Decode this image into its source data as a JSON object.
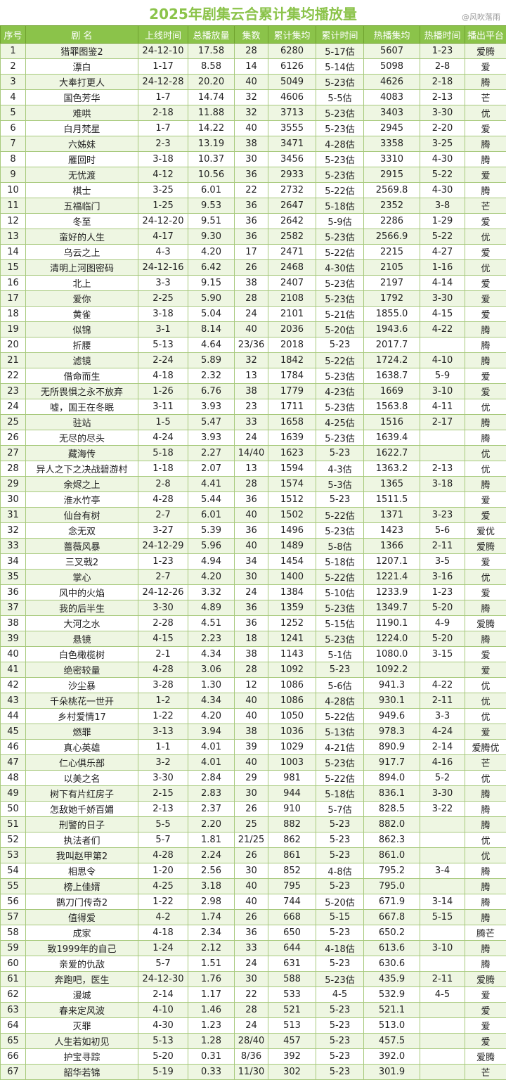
{
  "title": "2025年剧集云合累计集均播放量",
  "watermark": "@风吹落雨",
  "headers": [
    "序号",
    "剧  名",
    "上线时间",
    "总播放量",
    "集数",
    "累计集均",
    "累计时间",
    "热播集均",
    "热播时间",
    "播出平台"
  ],
  "rows": [
    [
      "1",
      "猎罪图鉴2",
      "24-12-10",
      "17.58",
      "28",
      "6280",
      "5-17估",
      "5607",
      "1-23",
      "爱腾"
    ],
    [
      "2",
      "漂白",
      "1-17",
      "8.58",
      "14",
      "6126",
      "5-14估",
      "5098",
      "2-8",
      "爱"
    ],
    [
      "3",
      "大奉打更人",
      "24-12-28",
      "20.20",
      "40",
      "5049",
      "5-23估",
      "4626",
      "2-18",
      "腾"
    ],
    [
      "4",
      "国色芳华",
      "1-7",
      "14.74",
      "32",
      "4606",
      "5-5估",
      "4083",
      "2-13",
      "芒"
    ],
    [
      "5",
      "难哄",
      "2-18",
      "11.88",
      "32",
      "3713",
      "5-23估",
      "3403",
      "3-30",
      "优"
    ],
    [
      "6",
      "白月梵星",
      "1-7",
      "14.22",
      "40",
      "3555",
      "5-23估",
      "2945",
      "2-20",
      "爱"
    ],
    [
      "7",
      "六姊妹",
      "2-3",
      "13.19",
      "38",
      "3471",
      "4-28估",
      "3358",
      "3-25",
      "腾"
    ],
    [
      "8",
      "雁回时",
      "3-18",
      "10.37",
      "30",
      "3456",
      "5-23估",
      "3310",
      "4-30",
      "腾"
    ],
    [
      "9",
      "无忧渡",
      "4-12",
      "10.56",
      "36",
      "2933",
      "5-23估",
      "2915",
      "5-22",
      "爱"
    ],
    [
      "10",
      "棋士",
      "3-25",
      "6.01",
      "22",
      "2732",
      "5-22估",
      "2569.8",
      "4-30",
      "腾"
    ],
    [
      "11",
      "五福临门",
      "1-25",
      "9.53",
      "36",
      "2647",
      "5-18估",
      "2352",
      "3-8",
      "芒"
    ],
    [
      "12",
      "冬至",
      "24-12-20",
      "9.51",
      "36",
      "2642",
      "5-9估",
      "2286",
      "1-29",
      "爱"
    ],
    [
      "13",
      "蛮好的人生",
      "4-17",
      "9.30",
      "36",
      "2582",
      "5-23估",
      "2566.9",
      "5-22",
      "优"
    ],
    [
      "14",
      "乌云之上",
      "4-3",
      "4.20",
      "17",
      "2471",
      "5-22估",
      "2215",
      "4-27",
      "爱"
    ],
    [
      "15",
      "清明上河图密码",
      "24-12-16",
      "6.42",
      "26",
      "2468",
      "4-30估",
      "2105",
      "1-16",
      "优"
    ],
    [
      "16",
      "北上",
      "3-3",
      "9.15",
      "38",
      "2407",
      "5-23估",
      "2197",
      "4-14",
      "爱"
    ],
    [
      "17",
      "爱你",
      "2-25",
      "5.90",
      "28",
      "2108",
      "5-23估",
      "1792",
      "3-30",
      "爱"
    ],
    [
      "18",
      "黄雀",
      "3-18",
      "5.04",
      "24",
      "2101",
      "5-21估",
      "1855.0",
      "4-15",
      "爱"
    ],
    [
      "19",
      "似锦",
      "3-1",
      "8.14",
      "40",
      "2036",
      "5-20估",
      "1943.6",
      "4-22",
      "腾"
    ],
    [
      "20",
      "折腰",
      "5-13",
      "4.64",
      "23/36",
      "2018",
      "5-23",
      "2017.7",
      "",
      "腾"
    ],
    [
      "21",
      "滤镜",
      "2-24",
      "5.89",
      "32",
      "1842",
      "5-22估",
      "1724.2",
      "4-10",
      "腾"
    ],
    [
      "22",
      "借命而生",
      "4-18",
      "2.32",
      "13",
      "1784",
      "5-23估",
      "1638.7",
      "5-9",
      "爱"
    ],
    [
      "23",
      "无所畏惧之永不放弃",
      "1-26",
      "6.76",
      "38",
      "1779",
      "4-23估",
      "1669",
      "3-10",
      "爱"
    ],
    [
      "24",
      "嘘，国王在冬眠",
      "3-11",
      "3.93",
      "23",
      "1711",
      "5-23估",
      "1563.8",
      "4-11",
      "优"
    ],
    [
      "25",
      "驻站",
      "1-5",
      "5.47",
      "33",
      "1658",
      "4-25估",
      "1516",
      "2-17",
      "腾"
    ],
    [
      "26",
      "无尽的尽头",
      "4-24",
      "3.93",
      "24",
      "1639",
      "5-23估",
      "1639.4",
      "",
      "腾"
    ],
    [
      "27",
      "藏海传",
      "5-18",
      "2.27",
      "14/40",
      "1623",
      "5-23",
      "1622.7",
      "",
      "优"
    ],
    [
      "28",
      "异人之下之决战碧游村",
      "1-18",
      "2.07",
      "13",
      "1594",
      "4-3估",
      "1363.2",
      "2-13",
      "优"
    ],
    [
      "29",
      "余烬之上",
      "2-8",
      "4.41",
      "28",
      "1574",
      "5-3估",
      "1365",
      "3-18",
      "腾"
    ],
    [
      "30",
      "淮水竹亭",
      "4-28",
      "5.44",
      "36",
      "1512",
      "5-23",
      "1511.5",
      "",
      "爱"
    ],
    [
      "31",
      "仙台有树",
      "2-7",
      "6.01",
      "40",
      "1502",
      "5-22估",
      "1371",
      "3-23",
      "爱"
    ],
    [
      "32",
      "念无双",
      "3-27",
      "5.39",
      "36",
      "1496",
      "5-23估",
      "1423",
      "5-6",
      "爱优"
    ],
    [
      "33",
      "蔷薇风暴",
      "24-12-29",
      "5.96",
      "40",
      "1489",
      "5-8估",
      "1366",
      "2-11",
      "爱腾"
    ],
    [
      "34",
      "三叉戟2",
      "1-23",
      "4.94",
      "34",
      "1454",
      "5-18估",
      "1207.1",
      "3-5",
      "爱"
    ],
    [
      "35",
      "掌心",
      "2-7",
      "4.20",
      "30",
      "1400",
      "5-22估",
      "1221.4",
      "3-16",
      "优"
    ],
    [
      "36",
      "风中的火焰",
      "24-12-26",
      "3.32",
      "24",
      "1384",
      "5-10估",
      "1233.9",
      "1-23",
      "爱"
    ],
    [
      "37",
      "我的后半生",
      "3-30",
      "4.89",
      "36",
      "1359",
      "5-23估",
      "1349.7",
      "5-20",
      "腾"
    ],
    [
      "38",
      "大河之水",
      "2-28",
      "4.51",
      "36",
      "1252",
      "5-15估",
      "1190.1",
      "4-9",
      "爱腾"
    ],
    [
      "39",
      "悬镜",
      "4-15",
      "2.23",
      "18",
      "1241",
      "5-23估",
      "1224.0",
      "5-20",
      "腾"
    ],
    [
      "40",
      "白色橄榄树",
      "2-1",
      "4.34",
      "38",
      "1143",
      "5-1估",
      "1080.0",
      "3-15",
      "爱"
    ],
    [
      "41",
      "绝密较量",
      "4-28",
      "3.06",
      "28",
      "1092",
      "5-23",
      "1092.2",
      "",
      "爱"
    ],
    [
      "42",
      "沙尘暴",
      "3-28",
      "1.30",
      "12",
      "1086",
      "5-6估",
      "941.3",
      "4-22",
      "优"
    ],
    [
      "43",
      "千朵桃花一世开",
      "1-2",
      "4.34",
      "40",
      "1086",
      "4-28估",
      "930.1",
      "2-11",
      "优"
    ],
    [
      "44",
      "乡村爱情17",
      "1-22",
      "4.20",
      "40",
      "1050",
      "5-22估",
      "949.6",
      "3-3",
      "优"
    ],
    [
      "45",
      "燃罪",
      "3-13",
      "3.94",
      "38",
      "1036",
      "5-13估",
      "978.3",
      "4-24",
      "爱"
    ],
    [
      "46",
      "真心英雄",
      "1-1",
      "4.01",
      "39",
      "1029",
      "4-21估",
      "890.9",
      "2-14",
      "爱腾优"
    ],
    [
      "47",
      "仁心俱乐部",
      "3-2",
      "4.01",
      "40",
      "1003",
      "5-23估",
      "917.7",
      "4-16",
      "芒"
    ],
    [
      "48",
      "以美之名",
      "3-30",
      "2.84",
      "29",
      "981",
      "5-22估",
      "894.0",
      "5-2",
      "优"
    ],
    [
      "49",
      "树下有片红房子",
      "2-15",
      "2.83",
      "30",
      "944",
      "5-18估",
      "836.1",
      "3-30",
      "腾"
    ],
    [
      "50",
      "怎敌她千娇百媚",
      "2-13",
      "2.37",
      "26",
      "910",
      "5-7估",
      "828.5",
      "3-22",
      "腾"
    ],
    [
      "51",
      "刑警的日子",
      "5-5",
      "2.20",
      "25",
      "882",
      "5-23",
      "882.0",
      "",
      "腾"
    ],
    [
      "52",
      "执法者们",
      "5-7",
      "1.81",
      "21/25",
      "862",
      "5-23",
      "862.3",
      "",
      "优"
    ],
    [
      "53",
      "我叫赵甲第2",
      "4-28",
      "2.24",
      "26",
      "861",
      "5-23",
      "861.0",
      "",
      "优"
    ],
    [
      "54",
      "相思令",
      "1-20",
      "2.56",
      "30",
      "852",
      "4-8估",
      "795.2",
      "3-4",
      "腾"
    ],
    [
      "55",
      "榜上佳婿",
      "4-25",
      "3.18",
      "40",
      "795",
      "5-23",
      "795.0",
      "",
      "腾"
    ],
    [
      "56",
      "鹊刀门传奇2",
      "1-22",
      "2.98",
      "40",
      "744",
      "5-20估",
      "671.9",
      "3-14",
      "腾"
    ],
    [
      "57",
      "值得爱",
      "4-2",
      "1.74",
      "26",
      "668",
      "5-15",
      "667.8",
      "5-15",
      "腾"
    ],
    [
      "58",
      "成家",
      "4-18",
      "2.34",
      "36",
      "650",
      "5-23",
      "650.2",
      "",
      "腾芒"
    ],
    [
      "59",
      "致1999年的自己",
      "1-24",
      "2.12",
      "33",
      "644",
      "4-18估",
      "613.6",
      "3-10",
      "腾"
    ],
    [
      "60",
      "亲爱的仇敌",
      "5-7",
      "1.51",
      "24",
      "631",
      "5-23",
      "630.6",
      "",
      "腾"
    ],
    [
      "61",
      "奔跑吧，医生",
      "24-12-30",
      "1.76",
      "30",
      "588",
      "5-23估",
      "435.9",
      "2-11",
      "爱腾"
    ],
    [
      "62",
      "漫城",
      "2-14",
      "1.17",
      "22",
      "533",
      "4-5",
      "532.9",
      "4-5",
      "爱"
    ],
    [
      "63",
      "春来定风波",
      "4-10",
      "1.46",
      "28",
      "521",
      "5-23",
      "521.1",
      "",
      "爱"
    ],
    [
      "64",
      "灭罪",
      "4-30",
      "1.23",
      "24",
      "513",
      "5-23",
      "513.0",
      "",
      "爱"
    ],
    [
      "65",
      "人生若如初见",
      "5-13",
      "1.28",
      "28/40",
      "457",
      "5-23",
      "457.5",
      "",
      "爱"
    ],
    [
      "66",
      "护宝寻踪",
      "5-20",
      "0.31",
      "8/36",
      "392",
      "5-23",
      "392.0",
      "",
      "爱腾"
    ],
    [
      "67",
      "韶华若锦",
      "5-19",
      "0.33",
      "11/30",
      "302",
      "5-23",
      "301.9",
      "",
      "芒"
    ]
  ]
}
